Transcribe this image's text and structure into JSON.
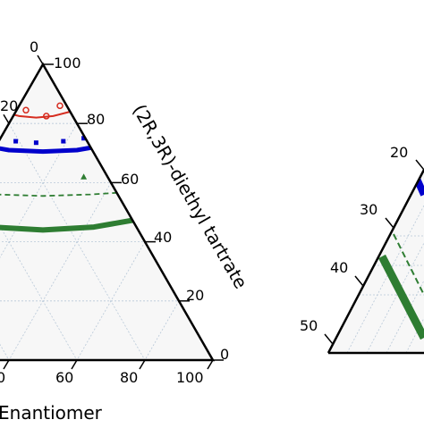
{
  "chart_data": [
    {
      "type": "scatter",
      "subtype": "ternary",
      "background": "#f7f7f7",
      "grid": true,
      "grid_step": 20,
      "axes": {
        "right": {
          "label": "(2R,3R)-diethyl tartrate",
          "ticks": [
            "0",
            "20",
            "40",
            "60",
            "80",
            "100"
          ]
        },
        "bottom": {
          "label": "Enantiomer",
          "ticks": [
            "0",
            "60",
            "80",
            "100"
          ]
        },
        "left": {
          "ticks": [
            "0",
            "20"
          ]
        }
      },
      "series": [
        {
          "color": "#d62d20",
          "marker": "circle",
          "line": "solid",
          "curve_x": [
            -17.0,
            -12.0,
            -7.0,
            -2.0,
            3.0,
            8.0,
            13.0,
            17.0
          ],
          "curve_y": [
            88,
            84,
            82.5,
            82,
            82.5,
            84,
            86,
            90
          ],
          "points_x": [
            -13,
            -9,
            -5,
            1,
            5,
            10,
            14
          ],
          "points_y": [
            83,
            85,
            84.5,
            82.5,
            86,
            84,
            88
          ]
        },
        {
          "color": "#0000cc",
          "marker": "square",
          "band_x": [
            -28.0,
            -20.0,
            -10.0,
            0.0,
            10.0,
            20.0,
            28.0
          ],
          "band_y": [
            78,
            73,
            71,
            70.5,
            71,
            73,
            78
          ],
          "band_width": 5,
          "dash_x": [
            -26.0,
            -18.0,
            -8.0,
            2.0,
            12.0,
            22.0,
            27.0
          ],
          "dash_y": [
            76,
            72.5,
            71,
            70.5,
            71.5,
            74,
            77
          ],
          "points_x": [
            -22,
            -14,
            -8,
            -2,
            6,
            12,
            20
          ],
          "points_y": [
            77,
            75,
            74,
            73.5,
            74,
            75,
            76
          ]
        },
        {
          "color": "#2e7d32",
          "marker": "triangle",
          "band_x": [
            -42.0,
            -30.0,
            -15.0,
            0.0,
            15.0,
            30.0,
            42.0
          ],
          "band_y": [
            55,
            48,
            45,
            44,
            45,
            48,
            55
          ],
          "band_width": 6,
          "dash_x": [
            -40.0,
            -28.0,
            -14.0,
            0.0,
            14.0,
            28.0,
            40.0
          ],
          "dash_y": [
            59,
            57,
            56,
            55.5,
            56,
            57,
            60
          ],
          "points_x": [
            -30,
            12,
            36
          ],
          "points_y": [
            59,
            62,
            60
          ]
        }
      ]
    },
    {
      "type": "scatter",
      "subtype": "ternary-zoom",
      "background": "#f7f7f7",
      "grid": true,
      "axes": {
        "left": {
          "ticks": [
            "20",
            "30",
            "40",
            "50"
          ]
        }
      },
      "series": [
        {
          "color": "#0000cc",
          "line": "solid-band"
        },
        {
          "color": "#2e7d32",
          "line": "solid-band"
        },
        {
          "color": "#2e7d32",
          "line": "dashed"
        }
      ]
    }
  ]
}
